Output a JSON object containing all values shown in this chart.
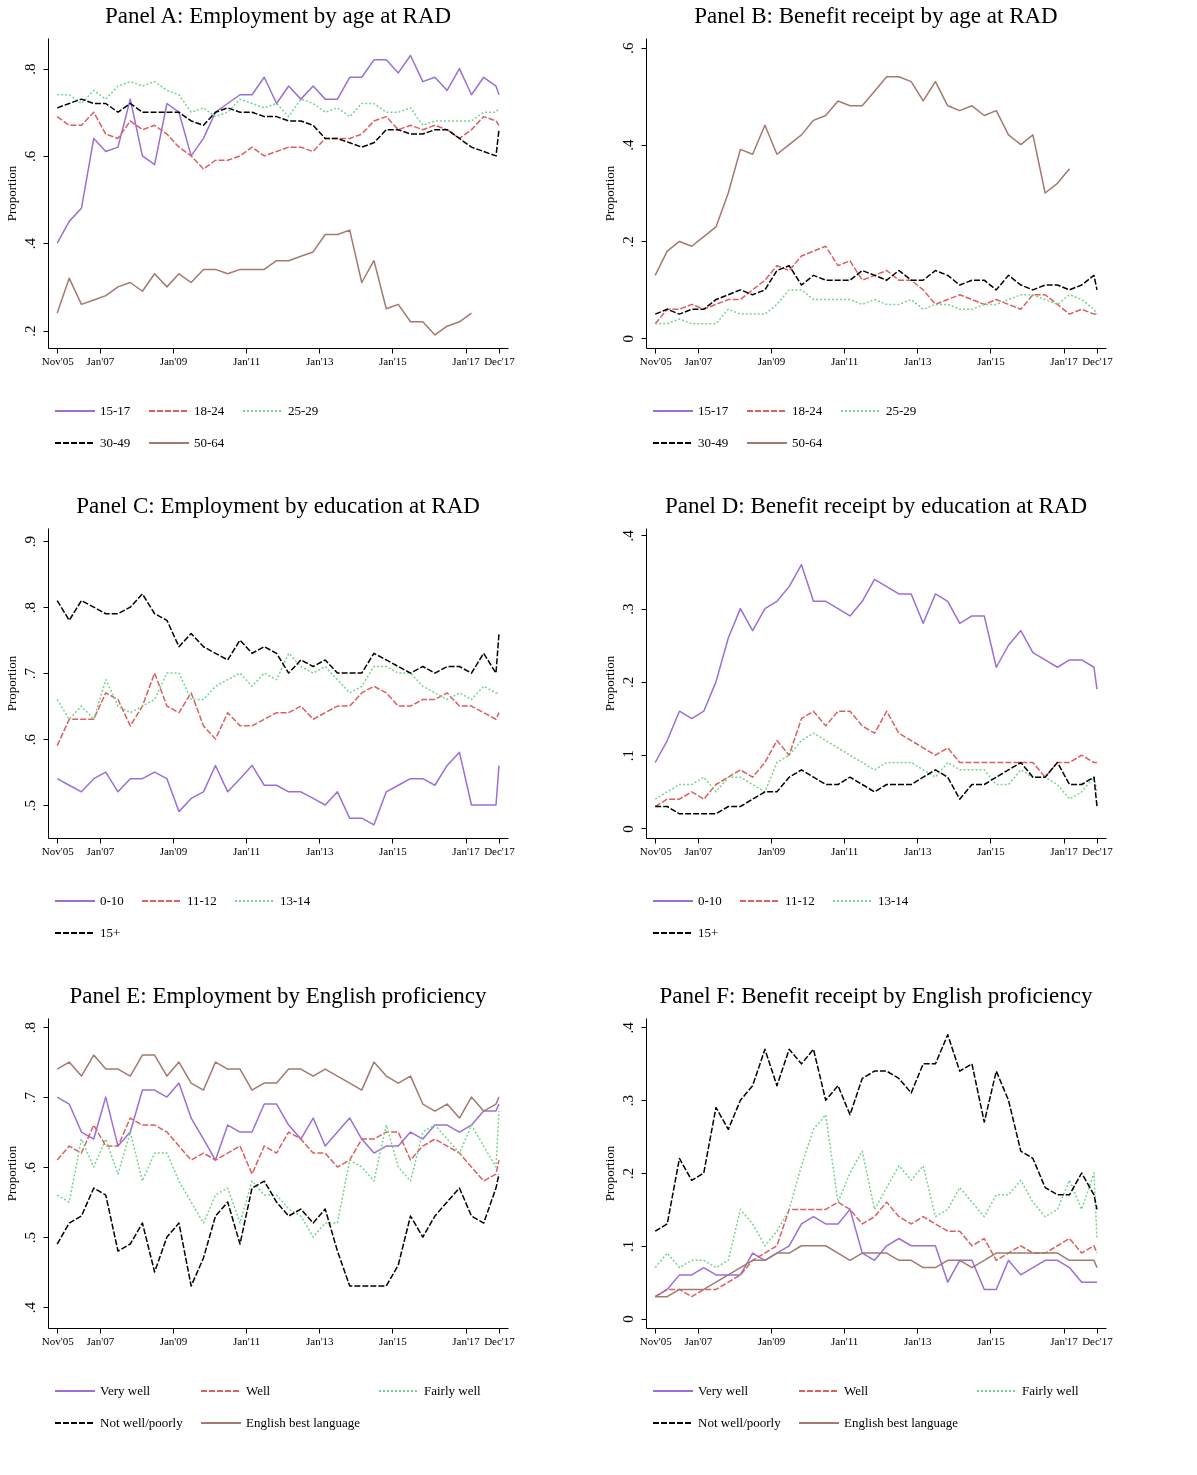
{
  "chart_data": [
    {
      "type": "line",
      "title": "Panel A: Employment by age at RAD",
      "ylabel": "Proportion",
      "legend": "bottom",
      "x": [
        "2005-11",
        "2006-03",
        "2006-07",
        "2006-11",
        "2007-03",
        "2007-07",
        "2007-11",
        "2008-03",
        "2008-07",
        "2008-11",
        "2009-03",
        "2009-07",
        "2009-11",
        "2010-03",
        "2010-07",
        "2010-11",
        "2011-03",
        "2011-07",
        "2011-11",
        "2012-03",
        "2012-07",
        "2012-11",
        "2013-03",
        "2013-07",
        "2013-11",
        "2014-03",
        "2014-07",
        "2014-11",
        "2015-03",
        "2015-07",
        "2015-11",
        "2016-03",
        "2016-07",
        "2016-11",
        "2017-03",
        "2017-07",
        "2017-11",
        "2017-12"
      ],
      "xlim": [
        "2005-08",
        "2018-03"
      ],
      "xticks": [
        {
          "value": "2005-11",
          "label": "Nov'05"
        },
        {
          "value": "2007-01",
          "label": "Jan'07"
        },
        {
          "value": "2009-01",
          "label": "Jan'09"
        },
        {
          "value": "2011-01",
          "label": "Jan'11"
        },
        {
          "value": "2013-01",
          "label": "Jan'13"
        },
        {
          "value": "2015-01",
          "label": "Jan'15"
        },
        {
          "value": "2017-01",
          "label": "Jan'17"
        },
        {
          "value": "2017-12",
          "label": "Dec'17"
        }
      ],
      "ylim": [
        0.16,
        0.87
      ],
      "yticks": [
        {
          "value": 0.2,
          "label": ".2"
        },
        {
          "value": 0.4,
          "label": ".4"
        },
        {
          "value": 0.6,
          "label": ".6"
        },
        {
          "value": 0.8,
          "label": ".8"
        }
      ],
      "series": [
        {
          "name": "15-17",
          "color": "#9b6fd6",
          "line_style": "solid",
          "values": [
            0.4,
            0.45,
            0.48,
            0.64,
            0.61,
            0.62,
            0.73,
            0.6,
            0.58,
            0.72,
            0.7,
            0.6,
            0.64,
            0.7,
            0.72,
            0.74,
            0.74,
            0.78,
            0.72,
            0.76,
            0.73,
            0.76,
            0.73,
            0.73,
            0.78,
            0.78,
            0.82,
            0.82,
            0.79,
            0.83,
            0.77,
            0.78,
            0.75,
            0.8,
            0.74,
            0.78,
            0.76,
            0.74
          ]
        },
        {
          "name": "18-24",
          "color": "#dc5f5f",
          "line_style": "dashed",
          "values": [
            0.69,
            0.67,
            0.67,
            0.7,
            0.65,
            0.64,
            0.68,
            0.66,
            0.67,
            0.65,
            0.62,
            0.6,
            0.57,
            0.59,
            0.59,
            0.6,
            0.62,
            0.6,
            0.61,
            0.62,
            0.62,
            0.61,
            0.64,
            0.64,
            0.64,
            0.65,
            0.68,
            0.69,
            0.66,
            0.67,
            0.66,
            0.67,
            0.66,
            0.64,
            0.66,
            0.69,
            0.68,
            0.67
          ]
        },
        {
          "name": "25-29",
          "color": "#76d38e",
          "line_style": "dotted",
          "values": [
            0.74,
            0.74,
            0.72,
            0.75,
            0.73,
            0.76,
            0.77,
            0.76,
            0.77,
            0.75,
            0.74,
            0.7,
            0.71,
            0.69,
            0.7,
            0.73,
            0.72,
            0.71,
            0.72,
            0.69,
            0.73,
            0.72,
            0.7,
            0.71,
            0.69,
            0.72,
            0.72,
            0.7,
            0.7,
            0.71,
            0.67,
            0.68,
            0.68,
            0.68,
            0.68,
            0.7,
            0.7,
            0.71
          ]
        },
        {
          "name": "30-49",
          "color": "#000000",
          "line_style": "dashed",
          "values": [
            0.71,
            0.72,
            0.73,
            0.72,
            0.72,
            0.7,
            0.72,
            0.7,
            0.7,
            0.7,
            0.7,
            0.68,
            0.67,
            0.7,
            0.71,
            0.7,
            0.7,
            0.69,
            0.69,
            0.68,
            0.68,
            0.67,
            0.64,
            0.64,
            0.63,
            0.62,
            0.63,
            0.66,
            0.66,
            0.65,
            0.65,
            0.66,
            0.66,
            0.64,
            0.62,
            0.61,
            0.6,
            0.66
          ]
        },
        {
          "name": "50-64",
          "color": "#a27a6e",
          "line_style": "solid",
          "values": [
            0.24,
            0.32,
            0.26,
            0.27,
            0.28,
            0.3,
            0.31,
            0.29,
            0.33,
            0.3,
            0.33,
            0.31,
            0.34,
            0.34,
            0.33,
            0.34,
            0.34,
            0.34,
            0.36,
            0.36,
            0.37,
            0.38,
            0.42,
            0.42,
            0.43,
            0.31,
            0.36,
            0.25,
            0.26,
            0.22,
            0.22,
            0.19,
            0.21,
            0.22,
            0.24,
            null,
            null,
            null
          ]
        }
      ]
    },
    {
      "type": "line",
      "title": "Panel B: Benefit receipt by age at RAD",
      "ylabel": "Proportion",
      "legend": "bottom",
      "x": [
        "2005-11",
        "2006-03",
        "2006-07",
        "2006-11",
        "2007-03",
        "2007-07",
        "2007-11",
        "2008-03",
        "2008-07",
        "2008-11",
        "2009-03",
        "2009-07",
        "2009-11",
        "2010-03",
        "2010-07",
        "2010-11",
        "2011-03",
        "2011-07",
        "2011-11",
        "2012-03",
        "2012-07",
        "2012-11",
        "2013-03",
        "2013-07",
        "2013-11",
        "2014-03",
        "2014-07",
        "2014-11",
        "2015-03",
        "2015-07",
        "2015-11",
        "2016-03",
        "2016-07",
        "2016-11",
        "2017-03",
        "2017-07",
        "2017-11",
        "2017-12"
      ],
      "xlim": [
        "2005-08",
        "2018-03"
      ],
      "xticks": [
        {
          "value": "2005-11",
          "label": "Nov'05"
        },
        {
          "value": "2007-01",
          "label": "Jan'07"
        },
        {
          "value": "2009-01",
          "label": "Jan'09"
        },
        {
          "value": "2011-01",
          "label": "Jan'11"
        },
        {
          "value": "2013-01",
          "label": "Jan'13"
        },
        {
          "value": "2015-01",
          "label": "Jan'15"
        },
        {
          "value": "2017-01",
          "label": "Jan'17"
        },
        {
          "value": "2017-12",
          "label": "Dec'17"
        }
      ],
      "ylim": [
        -0.02,
        0.62
      ],
      "yticks": [
        {
          "value": 0,
          "label": "0"
        },
        {
          "value": 0.2,
          "label": ".2"
        },
        {
          "value": 0.4,
          "label": ".4"
        },
        {
          "value": 0.6,
          "label": ".6"
        }
      ],
      "series": [
        {
          "name": "15-17",
          "color": "#9b6fd6",
          "line_style": "solid",
          "values": [
            null,
            null,
            null,
            null,
            null,
            null,
            null,
            null,
            null,
            null,
            null,
            null,
            null,
            null,
            null,
            null,
            null,
            null,
            null,
            null,
            null,
            null,
            null,
            null,
            null,
            null,
            null,
            null,
            null,
            null,
            null,
            null,
            null,
            null,
            null,
            null,
            null,
            null
          ]
        },
        {
          "name": "18-24",
          "color": "#dc5f5f",
          "line_style": "dashed",
          "values": [
            0.03,
            0.06,
            0.06,
            0.07,
            0.06,
            0.07,
            0.08,
            0.08,
            0.1,
            0.12,
            0.15,
            0.14,
            0.17,
            0.18,
            0.19,
            0.15,
            0.16,
            0.12,
            0.13,
            0.14,
            0.12,
            0.12,
            0.1,
            0.07,
            0.08,
            0.09,
            0.08,
            0.07,
            0.08,
            0.07,
            0.06,
            0.09,
            0.09,
            0.07,
            0.05,
            0.06,
            0.05,
            0.05
          ]
        },
        {
          "name": "25-29",
          "color": "#76d38e",
          "line_style": "dotted",
          "values": [
            0.03,
            0.03,
            0.04,
            0.03,
            0.03,
            0.03,
            0.06,
            0.05,
            0.05,
            0.05,
            0.07,
            0.1,
            0.1,
            0.08,
            0.08,
            0.08,
            0.08,
            0.07,
            0.08,
            0.07,
            0.07,
            0.08,
            0.06,
            0.07,
            0.07,
            0.06,
            0.06,
            0.07,
            0.07,
            0.08,
            0.09,
            0.09,
            0.08,
            0.07,
            0.09,
            0.08,
            0.06,
            0.05
          ]
        },
        {
          "name": "30-49",
          "color": "#000000",
          "line_style": "dashed",
          "values": [
            0.05,
            0.06,
            0.05,
            0.06,
            0.06,
            0.08,
            0.09,
            0.1,
            0.09,
            0.1,
            0.14,
            0.15,
            0.11,
            0.13,
            0.12,
            0.12,
            0.12,
            0.14,
            0.13,
            0.12,
            0.14,
            0.12,
            0.12,
            0.14,
            0.13,
            0.11,
            0.12,
            0.12,
            0.1,
            0.13,
            0.11,
            0.1,
            0.11,
            0.11,
            0.1,
            0.11,
            0.13,
            0.1
          ]
        },
        {
          "name": "50-64",
          "color": "#a27a6e",
          "line_style": "solid",
          "values": [
            0.13,
            0.18,
            0.2,
            0.19,
            0.21,
            0.23,
            0.3,
            0.39,
            0.38,
            0.44,
            0.38,
            0.4,
            0.42,
            0.45,
            0.46,
            0.49,
            0.48,
            0.48,
            0.51,
            0.54,
            0.54,
            0.53,
            0.49,
            0.53,
            0.48,
            0.47,
            0.48,
            0.46,
            0.47,
            0.42,
            0.4,
            0.42,
            0.3,
            0.32,
            0.35,
            null,
            null,
            null
          ]
        }
      ]
    },
    {
      "type": "line",
      "title": "Panel C: Employment by education at RAD",
      "ylabel": "Proportion",
      "legend": "bottom",
      "x": [
        "2005-11",
        "2006-03",
        "2006-07",
        "2006-11",
        "2007-03",
        "2007-07",
        "2007-11",
        "2008-03",
        "2008-07",
        "2008-11",
        "2009-03",
        "2009-07",
        "2009-11",
        "2010-03",
        "2010-07",
        "2010-11",
        "2011-03",
        "2011-07",
        "2011-11",
        "2012-03",
        "2012-07",
        "2012-11",
        "2013-03",
        "2013-07",
        "2013-11",
        "2014-03",
        "2014-07",
        "2014-11",
        "2015-03",
        "2015-07",
        "2015-11",
        "2016-03",
        "2016-07",
        "2016-11",
        "2017-03",
        "2017-07",
        "2017-11",
        "2017-12"
      ],
      "xlim": [
        "2005-08",
        "2018-03"
      ],
      "xticks": [
        {
          "value": "2005-11",
          "label": "Nov'05"
        },
        {
          "value": "2007-01",
          "label": "Jan'07"
        },
        {
          "value": "2009-01",
          "label": "Jan'09"
        },
        {
          "value": "2011-01",
          "label": "Jan'11"
        },
        {
          "value": "2013-01",
          "label": "Jan'13"
        },
        {
          "value": "2015-01",
          "label": "Jan'15"
        },
        {
          "value": "2017-01",
          "label": "Jan'17"
        },
        {
          "value": "2017-12",
          "label": "Dec'17"
        }
      ],
      "ylim": [
        0.45,
        0.92
      ],
      "yticks": [
        {
          "value": 0.5,
          "label": ".5"
        },
        {
          "value": 0.6,
          "label": ".6"
        },
        {
          "value": 0.7,
          "label": ".7"
        },
        {
          "value": 0.8,
          "label": ".8"
        },
        {
          "value": 0.9,
          "label": ".9"
        }
      ],
      "series": [
        {
          "name": "0-10",
          "color": "#9b6fd6",
          "line_style": "solid",
          "values": [
            0.54,
            0.53,
            0.52,
            0.54,
            0.55,
            0.52,
            0.54,
            0.54,
            0.55,
            0.54,
            0.49,
            0.51,
            0.52,
            0.56,
            0.52,
            0.54,
            0.56,
            0.53,
            0.53,
            0.52,
            0.52,
            0.51,
            0.5,
            0.52,
            0.48,
            0.48,
            0.47,
            0.52,
            0.53,
            0.54,
            0.54,
            0.53,
            0.56,
            0.58,
            0.5,
            0.5,
            0.5,
            0.56
          ]
        },
        {
          "name": "11-12",
          "color": "#dc5f5f",
          "line_style": "dashed",
          "values": [
            0.59,
            0.63,
            0.63,
            0.63,
            0.67,
            0.66,
            0.62,
            0.65,
            0.7,
            0.65,
            0.64,
            0.67,
            0.62,
            0.6,
            0.64,
            0.62,
            0.62,
            0.63,
            0.64,
            0.64,
            0.65,
            0.63,
            0.64,
            0.65,
            0.65,
            0.67,
            0.68,
            0.67,
            0.65,
            0.65,
            0.66,
            0.66,
            0.67,
            0.65,
            0.65,
            0.64,
            0.63,
            0.64
          ]
        },
        {
          "name": "13-14",
          "color": "#76d38e",
          "line_style": "dotted",
          "values": [
            0.66,
            0.63,
            0.65,
            0.63,
            0.69,
            0.65,
            0.64,
            0.65,
            0.66,
            0.7,
            0.7,
            0.66,
            0.66,
            0.68,
            0.69,
            0.7,
            0.68,
            0.7,
            0.69,
            0.73,
            0.71,
            0.7,
            0.71,
            0.69,
            0.67,
            0.68,
            0.71,
            0.71,
            0.7,
            0.7,
            0.68,
            0.67,
            0.66,
            0.67,
            0.66,
            0.68,
            0.67,
            0.67
          ]
        },
        {
          "name": "15+",
          "color": "#000000",
          "line_style": "dashed",
          "values": [
            0.81,
            0.78,
            0.81,
            0.8,
            0.79,
            0.79,
            0.8,
            0.82,
            0.79,
            0.78,
            0.74,
            0.76,
            0.74,
            0.73,
            0.72,
            0.75,
            0.73,
            0.74,
            0.73,
            0.7,
            0.72,
            0.71,
            0.72,
            0.7,
            0.7,
            0.7,
            0.73,
            0.72,
            0.71,
            0.7,
            0.71,
            0.7,
            0.71,
            0.71,
            0.7,
            0.73,
            0.7,
            0.76
          ]
        }
      ]
    },
    {
      "type": "line",
      "title": "Panel D: Benefit receipt by education at RAD",
      "ylabel": "Proportion",
      "legend": "bottom",
      "x": [
        "2005-11",
        "2006-03",
        "2006-07",
        "2006-11",
        "2007-03",
        "2007-07",
        "2007-11",
        "2008-03",
        "2008-07",
        "2008-11",
        "2009-03",
        "2009-07",
        "2009-11",
        "2010-03",
        "2010-07",
        "2010-11",
        "2011-03",
        "2011-07",
        "2011-11",
        "2012-03",
        "2012-07",
        "2012-11",
        "2013-03",
        "2013-07",
        "2013-11",
        "2014-03",
        "2014-07",
        "2014-11",
        "2015-03",
        "2015-07",
        "2015-11",
        "2016-03",
        "2016-07",
        "2016-11",
        "2017-03",
        "2017-07",
        "2017-11",
        "2017-12"
      ],
      "xlim": [
        "2005-08",
        "2018-03"
      ],
      "xticks": [
        {
          "value": "2005-11",
          "label": "Nov'05"
        },
        {
          "value": "2007-01",
          "label": "Jan'07"
        },
        {
          "value": "2009-01",
          "label": "Jan'09"
        },
        {
          "value": "2011-01",
          "label": "Jan'11"
        },
        {
          "value": "2013-01",
          "label": "Jan'13"
        },
        {
          "value": "2015-01",
          "label": "Jan'15"
        },
        {
          "value": "2017-01",
          "label": "Jan'17"
        },
        {
          "value": "2017-12",
          "label": "Dec'17"
        }
      ],
      "ylim": [
        -0.013,
        0.41
      ],
      "yticks": [
        {
          "value": 0,
          "label": "0"
        },
        {
          "value": 0.1,
          "label": ".1"
        },
        {
          "value": 0.2,
          "label": ".2"
        },
        {
          "value": 0.3,
          "label": ".3"
        },
        {
          "value": 0.4,
          "label": ".4"
        }
      ],
      "series": [
        {
          "name": "0-10",
          "color": "#9b6fd6",
          "line_style": "solid",
          "values": [
            0.09,
            0.12,
            0.16,
            0.15,
            0.16,
            0.2,
            0.26,
            0.3,
            0.27,
            0.3,
            0.31,
            0.33,
            0.36,
            0.31,
            0.31,
            0.3,
            0.29,
            0.31,
            0.34,
            0.33,
            0.32,
            0.32,
            0.28,
            0.32,
            0.31,
            0.28,
            0.29,
            0.29,
            0.22,
            0.25,
            0.27,
            0.24,
            0.23,
            0.22,
            0.23,
            0.23,
            0.22,
            0.19
          ]
        },
        {
          "name": "11-12",
          "color": "#dc5f5f",
          "line_style": "dashed",
          "values": [
            0.03,
            0.04,
            0.04,
            0.05,
            0.04,
            0.06,
            0.07,
            0.08,
            0.07,
            0.09,
            0.12,
            0.1,
            0.15,
            0.16,
            0.14,
            0.16,
            0.16,
            0.14,
            0.13,
            0.16,
            0.13,
            0.12,
            0.11,
            0.1,
            0.11,
            0.09,
            0.09,
            0.09,
            0.09,
            0.09,
            0.09,
            0.09,
            0.07,
            0.09,
            0.09,
            0.1,
            0.09,
            0.09
          ]
        },
        {
          "name": "13-14",
          "color": "#76d38e",
          "line_style": "dotted",
          "values": [
            0.04,
            0.05,
            0.06,
            0.06,
            0.07,
            0.05,
            0.07,
            0.07,
            0.06,
            0.05,
            0.09,
            0.1,
            0.12,
            0.13,
            0.12,
            0.11,
            0.1,
            0.09,
            0.08,
            0.09,
            0.09,
            0.09,
            0.08,
            0.07,
            0.09,
            0.08,
            0.08,
            0.08,
            0.06,
            0.06,
            0.08,
            0.07,
            0.07,
            0.06,
            0.04,
            0.05,
            0.07,
            0.05
          ]
        },
        {
          "name": "15+",
          "color": "#000000",
          "line_style": "dashed",
          "values": [
            0.03,
            0.03,
            0.02,
            0.02,
            0.02,
            0.02,
            0.03,
            0.03,
            0.04,
            0.05,
            0.05,
            0.07,
            0.08,
            0.07,
            0.06,
            0.06,
            0.07,
            0.06,
            0.05,
            0.06,
            0.06,
            0.06,
            0.07,
            0.08,
            0.07,
            0.04,
            0.06,
            0.06,
            0.07,
            0.08,
            0.09,
            0.07,
            0.07,
            0.09,
            0.06,
            0.06,
            0.07,
            0.03
          ]
        }
      ]
    },
    {
      "type": "line",
      "title": "Panel E: Employment by English proficiency",
      "ylabel": "Proportion",
      "legend": "bottom",
      "x": [
        "2005-11",
        "2006-03",
        "2006-07",
        "2006-11",
        "2007-03",
        "2007-07",
        "2007-11",
        "2008-03",
        "2008-07",
        "2008-11",
        "2009-03",
        "2009-07",
        "2009-11",
        "2010-03",
        "2010-07",
        "2010-11",
        "2011-03",
        "2011-07",
        "2011-11",
        "2012-03",
        "2012-07",
        "2012-11",
        "2013-03",
        "2013-07",
        "2013-11",
        "2014-03",
        "2014-07",
        "2014-11",
        "2015-03",
        "2015-07",
        "2015-11",
        "2016-03",
        "2016-07",
        "2016-11",
        "2017-03",
        "2017-07",
        "2017-11",
        "2017-12"
      ],
      "xlim": [
        "2005-08",
        "2018-03"
      ],
      "xticks": [
        {
          "value": "2005-11",
          "label": "Nov'05"
        },
        {
          "value": "2007-01",
          "label": "Jan'07"
        },
        {
          "value": "2009-01",
          "label": "Jan'09"
        },
        {
          "value": "2011-01",
          "label": "Jan'11"
        },
        {
          "value": "2013-01",
          "label": "Jan'13"
        },
        {
          "value": "2015-01",
          "label": "Jan'15"
        },
        {
          "value": "2017-01",
          "label": "Jan'17"
        },
        {
          "value": "2017-12",
          "label": "Dec'17"
        }
      ],
      "ylim": [
        0.37,
        0.813
      ],
      "yticks": [
        {
          "value": 0.4,
          "label": ".4"
        },
        {
          "value": 0.5,
          "label": ".5"
        },
        {
          "value": 0.6,
          "label": ".6"
        },
        {
          "value": 0.7,
          "label": ".7"
        },
        {
          "value": 0.8,
          "label": ".8"
        }
      ],
      "series": [
        {
          "name": "Very well",
          "color": "#9b6fd6",
          "line_style": "solid",
          "values": [
            0.7,
            0.69,
            0.65,
            0.64,
            0.7,
            0.63,
            0.65,
            0.71,
            0.71,
            0.7,
            0.72,
            0.67,
            0.64,
            0.61,
            0.66,
            0.65,
            0.65,
            0.69,
            0.69,
            0.66,
            0.64,
            0.67,
            0.63,
            0.65,
            0.67,
            0.64,
            0.62,
            0.63,
            0.63,
            0.65,
            0.64,
            0.66,
            0.66,
            0.65,
            0.66,
            0.68,
            0.68,
            0.69
          ]
        },
        {
          "name": "Well",
          "color": "#dc5f5f",
          "line_style": "dashed",
          "values": [
            0.61,
            0.63,
            0.62,
            0.66,
            0.63,
            0.63,
            0.67,
            0.66,
            0.66,
            0.65,
            0.63,
            0.61,
            0.62,
            0.61,
            0.62,
            0.63,
            0.59,
            0.63,
            0.62,
            0.65,
            0.64,
            0.62,
            0.62,
            0.6,
            0.61,
            0.64,
            0.64,
            0.65,
            0.65,
            0.61,
            0.63,
            0.64,
            0.63,
            0.62,
            0.6,
            0.58,
            0.59,
            0.61
          ]
        },
        {
          "name": "Fairly well",
          "color": "#76d38e",
          "line_style": "dotted",
          "values": [
            0.56,
            0.55,
            0.64,
            0.6,
            0.64,
            0.59,
            0.65,
            0.58,
            0.62,
            0.62,
            0.58,
            0.55,
            0.52,
            0.56,
            0.57,
            0.52,
            0.58,
            0.56,
            0.56,
            0.54,
            0.53,
            0.5,
            0.52,
            0.52,
            0.61,
            0.6,
            0.58,
            0.66,
            0.6,
            0.58,
            0.65,
            0.66,
            0.64,
            0.62,
            0.66,
            0.63,
            0.6,
            0.68
          ]
        },
        {
          "name": "Not well/poorly",
          "color": "#000000",
          "line_style": "dashed",
          "values": [
            0.49,
            0.52,
            0.53,
            0.57,
            0.56,
            0.48,
            0.49,
            0.52,
            0.45,
            0.5,
            0.52,
            0.43,
            0.47,
            0.53,
            0.55,
            0.49,
            0.57,
            0.58,
            0.55,
            0.53,
            0.54,
            0.52,
            0.54,
            0.48,
            0.43,
            0.43,
            0.43,
            0.43,
            0.46,
            0.53,
            0.5,
            0.53,
            0.55,
            0.57,
            0.53,
            0.52,
            0.57,
            0.59
          ]
        },
        {
          "name": "English best language",
          "color": "#a27a6e",
          "line_style": "solid",
          "values": [
            0.74,
            0.75,
            0.73,
            0.76,
            0.74,
            0.74,
            0.73,
            0.76,
            0.76,
            0.73,
            0.75,
            0.72,
            0.71,
            0.75,
            0.74,
            0.74,
            0.71,
            0.72,
            0.72,
            0.74,
            0.74,
            0.73,
            0.74,
            0.73,
            0.72,
            0.71,
            0.75,
            0.73,
            0.72,
            0.73,
            0.69,
            0.68,
            0.69,
            0.67,
            0.7,
            0.68,
            0.69,
            0.7
          ]
        }
      ]
    },
    {
      "type": "line",
      "title": "Panel F: Benefit receipt by English proficiency",
      "ylabel": "Proportion",
      "legend": "bottom",
      "x": [
        "2005-11",
        "2006-03",
        "2006-07",
        "2006-11",
        "2007-03",
        "2007-07",
        "2007-11",
        "2008-03",
        "2008-07",
        "2008-11",
        "2009-03",
        "2009-07",
        "2009-11",
        "2010-03",
        "2010-07",
        "2010-11",
        "2011-03",
        "2011-07",
        "2011-11",
        "2012-03",
        "2012-07",
        "2012-11",
        "2013-03",
        "2013-07",
        "2013-11",
        "2014-03",
        "2014-07",
        "2014-11",
        "2015-03",
        "2015-07",
        "2015-11",
        "2016-03",
        "2016-07",
        "2016-11",
        "2017-03",
        "2017-07",
        "2017-11",
        "2017-12"
      ],
      "xlim": [
        "2005-08",
        "2018-03"
      ],
      "xticks": [
        {
          "value": "2005-11",
          "label": "Nov'05"
        },
        {
          "value": "2007-01",
          "label": "Jan'07"
        },
        {
          "value": "2009-01",
          "label": "Jan'09"
        },
        {
          "value": "2011-01",
          "label": "Jan'11"
        },
        {
          "value": "2013-01",
          "label": "Jan'13"
        },
        {
          "value": "2015-01",
          "label": "Jan'15"
        },
        {
          "value": "2017-01",
          "label": "Jan'17"
        },
        {
          "value": "2017-12",
          "label": "Dec'17"
        }
      ],
      "ylim": [
        -0.013,
        0.413
      ],
      "yticks": [
        {
          "value": 0,
          "label": "0"
        },
        {
          "value": 0.1,
          "label": ".1"
        },
        {
          "value": 0.2,
          "label": ".2"
        },
        {
          "value": 0.3,
          "label": ".3"
        },
        {
          "value": 0.4,
          "label": ".4"
        }
      ],
      "series": [
        {
          "name": "Very well",
          "color": "#9b6fd6",
          "line_style": "solid",
          "values": [
            0.03,
            0.04,
            0.06,
            0.06,
            0.07,
            0.06,
            0.06,
            0.06,
            0.09,
            0.08,
            0.09,
            0.1,
            0.13,
            0.14,
            0.13,
            0.13,
            0.15,
            0.09,
            0.08,
            0.1,
            0.11,
            0.1,
            0.1,
            0.1,
            0.05,
            0.08,
            0.08,
            0.04,
            0.04,
            0.08,
            0.06,
            0.07,
            0.08,
            0.08,
            0.07,
            0.05,
            0.05,
            0.05
          ]
        },
        {
          "name": "Well",
          "color": "#dc5f5f",
          "line_style": "dashed",
          "values": [
            0.03,
            0.04,
            0.04,
            0.03,
            0.04,
            0.04,
            0.05,
            0.06,
            0.08,
            0.09,
            0.1,
            0.15,
            0.15,
            0.15,
            0.15,
            0.16,
            0.15,
            0.13,
            0.14,
            0.16,
            0.14,
            0.13,
            0.14,
            0.13,
            0.12,
            0.12,
            0.1,
            0.11,
            0.08,
            0.09,
            0.1,
            0.09,
            0.09,
            0.1,
            0.11,
            0.09,
            0.1,
            0.09
          ]
        },
        {
          "name": "Fairly well",
          "color": "#76d38e",
          "line_style": "dotted",
          "values": [
            0.07,
            0.09,
            0.07,
            0.08,
            0.08,
            0.07,
            0.08,
            0.15,
            0.13,
            0.1,
            0.12,
            0.15,
            0.21,
            0.26,
            0.28,
            0.16,
            0.2,
            0.23,
            0.15,
            0.18,
            0.21,
            0.19,
            0.21,
            0.14,
            0.15,
            0.18,
            0.16,
            0.14,
            0.17,
            0.17,
            0.19,
            0.16,
            0.14,
            0.15,
            0.19,
            0.15,
            0.2,
            0.11
          ]
        },
        {
          "name": "Not well/poorly",
          "color": "#000000",
          "line_style": "dashed",
          "values": [
            0.12,
            0.13,
            0.22,
            0.19,
            0.2,
            0.29,
            0.26,
            0.3,
            0.32,
            0.37,
            0.32,
            0.37,
            0.35,
            0.37,
            0.3,
            0.32,
            0.28,
            0.33,
            0.34,
            0.34,
            0.33,
            0.31,
            0.35,
            0.35,
            0.39,
            0.34,
            0.35,
            0.27,
            0.34,
            0.3,
            0.23,
            0.22,
            0.18,
            0.17,
            0.17,
            0.2,
            0.17,
            0.15
          ]
        },
        {
          "name": "English best language",
          "color": "#a27a6e",
          "line_style": "solid",
          "values": [
            0.03,
            0.03,
            0.04,
            0.04,
            0.04,
            0.05,
            0.06,
            0.07,
            0.08,
            0.08,
            0.09,
            0.09,
            0.1,
            0.1,
            0.1,
            0.09,
            0.08,
            0.09,
            0.09,
            0.09,
            0.08,
            0.08,
            0.07,
            0.07,
            0.08,
            0.08,
            0.07,
            0.08,
            0.09,
            0.09,
            0.09,
            0.09,
            0.09,
            0.09,
            0.08,
            0.08,
            0.08,
            0.07
          ]
        }
      ]
    }
  ]
}
